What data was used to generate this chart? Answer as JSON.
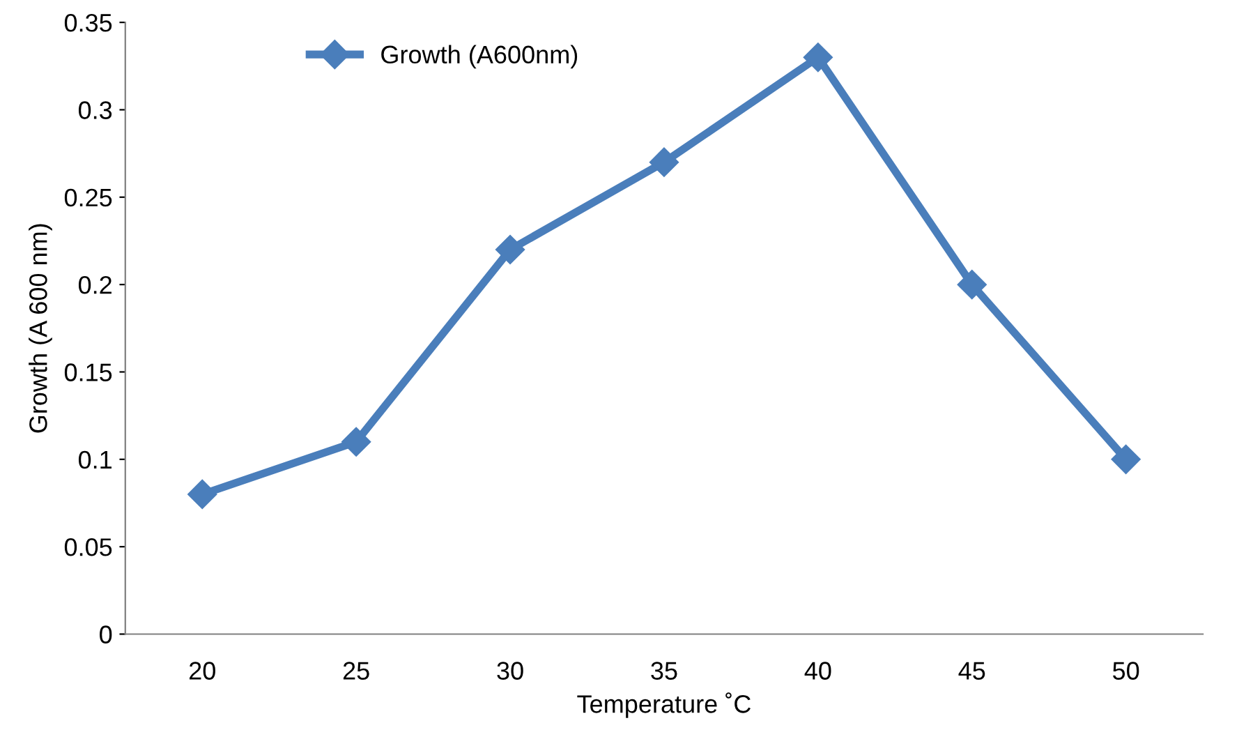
{
  "chart_data": {
    "type": "line",
    "xlabel": "Temperature ˚C",
    "ylabel": "Growth (A 600 nm)",
    "categories": [
      "20",
      "25",
      "30",
      "35",
      "40",
      "45",
      "50"
    ],
    "series": [
      {
        "name": "Growth (A600nm)",
        "color": "#4a7ebb",
        "values": [
          0.08,
          0.11,
          0.22,
          0.27,
          0.33,
          0.2,
          0.1
        ]
      }
    ],
    "ylim": [
      0,
      0.35
    ],
    "yticks": [
      0,
      0.05,
      0.1,
      0.15,
      0.2,
      0.25,
      0.3,
      0.35
    ],
    "marker": "diamond",
    "line_style": "solid",
    "legend": "top left",
    "grid": false
  }
}
